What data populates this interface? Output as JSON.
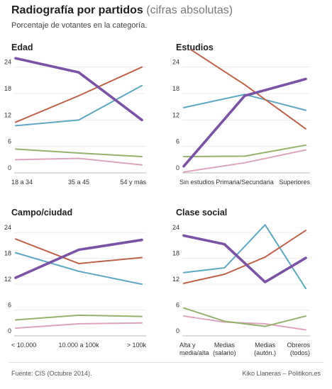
{
  "header": {
    "title_bold": "Radiografía por partidos",
    "title_paren": "(cifras absolutas)",
    "subtitle": "Porcentaje de votantes en la categoría."
  },
  "footer": {
    "source": "Fuente: CIS (Octubre 2014).",
    "credit": "Kiko Llaneras – Politikon.es"
  },
  "colors": {
    "purple": "#7a52a6",
    "orange": "#c0624a",
    "blue": "#5ea8c4",
    "green": "#93b36d",
    "pink": "#dea4bf"
  },
  "chart_data": [
    {
      "type": "line",
      "title": "Edad",
      "categories": [
        [
          "18 a 34"
        ],
        [
          "35 a 45"
        ],
        [
          "54 y más"
        ]
      ],
      "ylim": [
        0,
        27
      ],
      "yticks": [
        0,
        6,
        12,
        18,
        24
      ],
      "series": [
        {
          "color": "orange",
          "values": [
            11.5,
            17.5,
            24
          ]
        },
        {
          "color": "blue",
          "values": [
            10.7,
            12,
            19.8
          ]
        },
        {
          "color": "purple",
          "values": [
            26,
            22.8,
            12
          ]
        },
        {
          "color": "green",
          "values": [
            5.4,
            4.5,
            3.7
          ]
        },
        {
          "color": "pink",
          "values": [
            3,
            3.3,
            1.8
          ]
        }
      ]
    },
    {
      "type": "line",
      "title": "Estudios",
      "categories": [
        [
          "Sin estudios"
        ],
        [
          "Primaria/Secundaria"
        ],
        [
          "Superiores"
        ]
      ],
      "ylim": [
        0,
        27
      ],
      "yticks": [
        0,
        6,
        12,
        18,
        24
      ],
      "series": [
        {
          "color": "orange",
          "values": [
            29,
            20,
            10
          ]
        },
        {
          "color": "blue",
          "values": [
            14.8,
            17.8,
            14.2
          ]
        },
        {
          "color": "purple",
          "values": [
            1.5,
            17.5,
            21.3
          ]
        },
        {
          "color": "green",
          "values": [
            3.7,
            3.8,
            6.3
          ]
        },
        {
          "color": "pink",
          "values": [
            0.2,
            2.3,
            5.2
          ]
        }
      ]
    },
    {
      "type": "line",
      "title": "Campo/ciudad",
      "categories": [
        [
          "< 10.000"
        ],
        [
          "10.000 a 100k"
        ],
        [
          "> 100k"
        ]
      ],
      "ylim": [
        0,
        27
      ],
      "yticks": [
        0,
        6,
        12,
        18,
        24
      ],
      "series": [
        {
          "color": "orange",
          "values": [
            22.5,
            16.8,
            18.2
          ]
        },
        {
          "color": "blue",
          "values": [
            19.3,
            15,
            12
          ]
        },
        {
          "color": "purple",
          "values": [
            13.5,
            20,
            22.3
          ]
        },
        {
          "color": "green",
          "values": [
            3.7,
            4.8,
            4.5
          ]
        },
        {
          "color": "pink",
          "values": [
            1.8,
            2.8,
            3
          ]
        }
      ]
    },
    {
      "type": "line",
      "title": "Clase social",
      "categories": [
        [
          "Alta y",
          "media/alta"
        ],
        [
          "Medias",
          "(salario)"
        ],
        [
          "Medias",
          "(autón.)"
        ],
        [
          "Obreros",
          "(todos)"
        ]
      ],
      "ylim": [
        0,
        27
      ],
      "yticks": [
        0,
        6,
        12,
        18,
        24
      ],
      "series": [
        {
          "color": "orange",
          "values": [
            12.2,
            14.3,
            18.3,
            24.5
          ]
        },
        {
          "color": "blue",
          "values": [
            14.7,
            15.8,
            25.8,
            11
          ]
        },
        {
          "color": "purple",
          "values": [
            23.3,
            21.3,
            12.5,
            18.1
          ]
        },
        {
          "color": "green",
          "values": [
            6.5,
            3.4,
            2.2,
            4.6
          ]
        },
        {
          "color": "pink",
          "values": [
            4.6,
            3.2,
            2.8,
            1.4
          ]
        }
      ]
    }
  ]
}
